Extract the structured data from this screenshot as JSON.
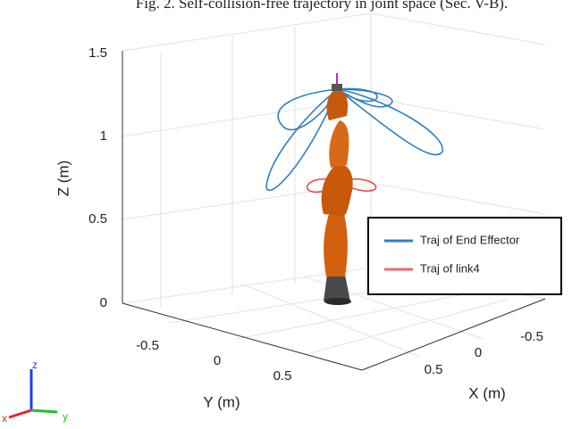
{
  "caption": "Fig. 2.   Self-collision-free trajectory in joint space (Sec. V-B).",
  "z_axis": {
    "label": "Z (m)",
    "ticks": [
      "1.5",
      "1",
      "0.5",
      "0"
    ]
  },
  "y_axis": {
    "label": "Y (m)",
    "ticks": [
      "-0.5",
      "0",
      "0.5"
    ]
  },
  "x_axis": {
    "label": "X (m)",
    "ticks": [
      "0.5",
      "0",
      "-0.5"
    ]
  },
  "legend": [
    {
      "label": "Traj of End Effector",
      "color": "#2f7fc1"
    },
    {
      "label": "Traj of link4",
      "color": "#f06a6a"
    }
  ],
  "triad": {
    "z": "z",
    "y": "y",
    "x": "x"
  }
}
